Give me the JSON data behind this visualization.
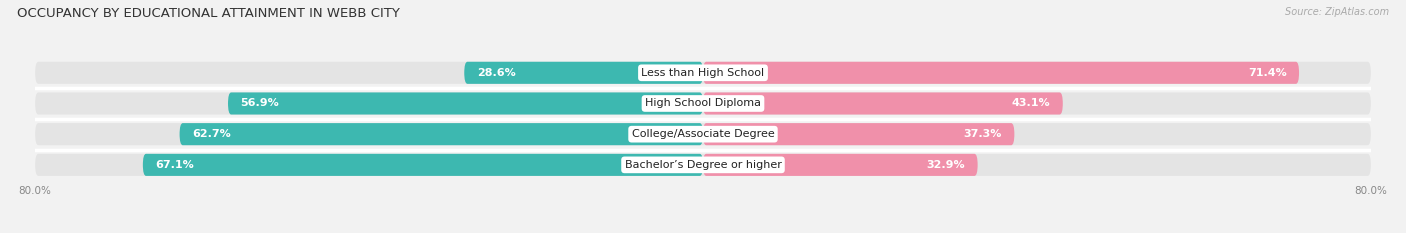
{
  "title": "OCCUPANCY BY EDUCATIONAL ATTAINMENT IN WEBB CITY",
  "source": "Source: ZipAtlas.com",
  "categories": [
    "Less than High School",
    "High School Diploma",
    "College/Associate Degree",
    "Bachelor’s Degree or higher"
  ],
  "owner_pct": [
    28.6,
    56.9,
    62.7,
    67.1
  ],
  "renter_pct": [
    71.4,
    43.1,
    37.3,
    32.9
  ],
  "owner_color": "#3DB8B0",
  "renter_color": "#F090AA",
  "row_bg_color": "#E4E4E4",
  "category_label_bg": "#FFFFFF",
  "axis_limit": 80.0,
  "bar_height": 0.72,
  "title_fontsize": 9.5,
  "label_fontsize": 8,
  "cat_fontsize": 8,
  "source_fontsize": 7,
  "legend_fontsize": 8,
  "tick_fontsize": 7.5,
  "background_color": "#F2F2F2"
}
